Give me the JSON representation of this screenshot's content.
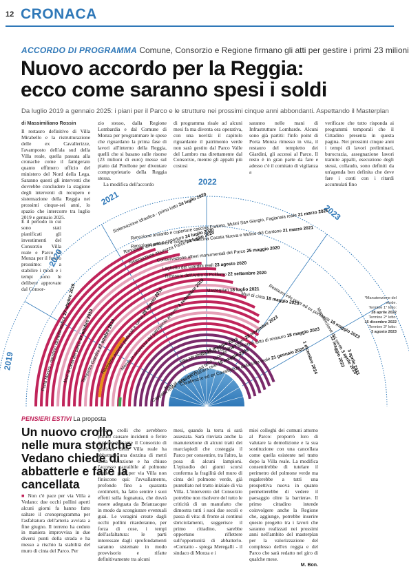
{
  "header": {
    "page_number": "12",
    "section": "CRONACA"
  },
  "article": {
    "kicker_label": "ACCORDO DI PROGRAMMA",
    "kicker_text": "Comune, Consorzio e Regione firmano gli atti per gestire i primi 23 milioni",
    "headline_1": "Nuovo accordo per la Reggia:",
    "headline_2": "ecco come saranno spesi i soldi",
    "subhead": "Da luglio 2019 a gennaio 2025: i piani per il Parco e le strutture nei prossimi cinque anni abbondanti. Aspettando il Masterplan",
    "byline": "di Massimiliano Rossin",
    "col1": "Il restauro definitivo di Villa Mirabello e la ristrutturazione delle ex Cavallerizze, l'avamposto dell'ala sud della Villa reale, quella passata alla cronache come il famigerato quanto effimero ufficio del ministero del Nord della Lega. Saranno questi gli interventi che dovrebbe concludere la stagione degli interventi di recupero e sistemazione della Reggia nei prossimi cinque-sei anni, lo spazio che intercorre tra luglio 2019 e gennaio 2025.",
    "col1b": "È il periodo in cui sono stati pianificati gli investimenti del Consorzio Villa reale e Parco di Monza per il futuro prossimo: a stabilire i modi e i tempi sono le delibere approvate dal Consor-",
    "col2": "zio stesso, dalla Regione Lombardia e dal Comune di Monza per programmare le spese che riguardano la prima fase di lavori all'interno della Reggia, quelli che si basano sulle risorse (23 milioni di euro) messe sul piatto dal Pirellone per diventare comproprietario della Reggia stessa.",
    "col2b": "La modifica dell'accordo",
    "col3": "di programma risale ad alcuni mesi fa ma diventa ora operativa, con una novità: il capitolo riguardante il patrimonio verde non sarà gestito dal Parco Valle del Lambro ma direttamente dal Consorzio, mentre gli appalti più costosi",
    "col4": "saranno nelle mani di Infrastrutture Lombarde. Alcuni sono già partiti: l'info point di Porta Monza rimesso in vita, il restauro del tempietto dei Giardini, gli accessi al Parco. Il resto è in gran parte da fare e adesso c'è il comitato di vigilanza a",
    "col5": "verificare che tutto risponda ai programmi temporali che il Cittadino presenta in questa pagina. Nei prossimi cinque anni i tempi di lavori preliminari, burocrazia, assegnazione lavori tramite appalti, esecuzione degli stessi, collaudo, sono definiti da un'agenda ben definita che deve fare i conti con i ritardi accumulati fino"
  },
  "timeline": {
    "years": [
      "2019",
      "2020",
      "2021",
      "2022",
      "2023"
    ],
    "arcs": [
      {
        "label": "Porta Monza - ripristino idoneità statica",
        "date": "27 ottobre 2019",
        "color": "#c0245a"
      },
      {
        "label": "Muri di cinta del parco",
        "date": "27 ottobre 2019",
        "color": "#c0245a"
      },
      {
        "label": "Tempietto Giardini",
        "date": "27 ottobre 2019",
        "color": "#c0245a"
      },
      {
        "label": "Revisione accessi pedonali e carrai",
        "date": "29 agosto 2019",
        "color": "#c0245a"
      },
      {
        "label": "Messa in sicurezza del patrimonio arboreo",
        "date": "2 settembre 2019",
        "color": "#c0245a"
      },
      {
        "label": "Cappella reale - rifacimento del tetto, facciate e restauro",
        "date": "28 novembre 2023",
        "color": "#7a2a6a"
      },
      {
        "label": "Muri di cinta dei Giardini reali",
        "date": "18 maggio 2023",
        "color": "#7a2a6a"
      },
      {
        "label": "Cavallerizze ed ex Cavallerizze della Villa reale",
        "date": "21 gennaio 2025",
        "color": "#7a2a6a"
      },
      {
        "label": "Villa Mirabello",
        "date": "18 maggio 2023",
        "color": "#7a2a6a"
      },
      {
        "label": "Cascina Fontana - secondo lotto di restauro",
        "date": "18 maggio 2023",
        "color": "#7a2a6a"
      },
      {
        "label": "Restauro info point ed ex portineria",
        "date": "18 maggio 2023",
        "color": "#7a2a6a"
      },
      {
        "label": "Muri di cinta",
        "date": "18 maggio 2023",
        "color": "#7a2a6a"
      }
    ],
    "upper_labels": [
      {
        "text": "Sistemazione idraulica - primo lotto",
        "date": "24 luglio 2020"
      },
      {
        "text": "Rimozione amianto e coperture cascina Frutteto, Mulini San Giorgio, Fagianaia reale",
        "date": "21 marzo 2021"
      },
      {
        "text": "Rimozione amianto e coperture cascina Casata Nuova e Mulino del Cantone",
        "date": "21 marzo 2021"
      },
      {
        "text": "Rimozione amianto e coperture",
        "date": "24 luglio 2020"
      },
      {
        "text": "Sistemazione sicurezza Parco",
        "date": "24 luglio 2020"
      },
      {
        "text": "Conservazione alberi monumentali del Parco",
        "date": "25 maggio 2020"
      },
      {
        "text": "Laghetto dei Giardini reali",
        "date": "23 agosto 2020"
      },
      {
        "text": "Restauro dell'Antro di Polifemo",
        "date": "22 settembre 2020"
      },
      {
        "text": "Masterplan",
        "date": "18 luglio 2021"
      },
      {
        "text": "Manutenzione del verde",
        "date": "3 aprile 2023"
      }
    ],
    "right_dates": [
      "1 dicembre 2024",
      "12 maggio 2023",
      "3 aprile 2023"
    ],
    "footnote_title": "*Manutenzione del verde.",
    "footnote_lines": [
      "Termine 1° lotto:",
      "28 aprile 2022",
      "Termine 2° lotto:",
      "15 dicembre 2022",
      "Termine 3° lotto:",
      "3 agosto 2023"
    ]
  },
  "second": {
    "section_label": "PENSIERI ESTIVI",
    "section_text": "La proposta",
    "headline": "Un nuovo crollo nelle mura storiche Vedano chiede di abbatterle e fare la cancellata",
    "col1": "Non c'è pace per via Villa a Vedano: due occhi pollini aperti alcuni giorni fa hanno fatto saltare il cronoprogramma per l'asfaltatura dell'arteria avviata a fine giugno. Il terreno ha ceduto in maniera improvvisa in due diversi punti della strada e ha messo a rischio la stabilità del muro di cinta del Parco. Per",
    "col2": "evitare crolli che avrebbero potuto causare incidenti o ferire qualche passante il Consorzio di gestione della Villa reale ha abbattuto una dozzina di metri della recinzione e ha chiuso l'accesso carraibile al polmone verde. I guai per via Villa non finiscono qui: l'avvallamento, profondo fino a quaranta centimetri, ha fatto sentire i suoi effetti sulla fognatura, che dovrà essere adeguata da Brianzacque in modo da scongiurare eventuali guai. Le voragini create dagli occhi pollini ritarderanno, per forza di cose, i tempi dell'asfaltatura: le parti interessate dagli sprofondamenti saranno sistemate in modo provvisorio e rifatte definitivamente tra alcuni",
    "col3": "mesi, quando la terra si sarà assestata. Sarà rinviata anche la manutenzione di alcuni tratti dei marciapiedi che costeggia il Parco per consentire, tra l'altro, la posa di alcuni lampioni. L'episodio dei giorni scorsi conferma la fragilità del muro di cinta del polmone verde, già puntellato nel tratto iniziale di via Villa. L'intervento del Consorzio potrebbe non risolvere del tutto le criticità di un manufatto che dimostra tutti i suoi due secoli e passa di vita: di fronte ai continui sbriciolamenti, suggerisce il primo cittadino, sarebbe opportuno riflettere sull'opportunità di abbatterlo. «Contatto - spiega Meregalli - il sindaco di Monza e i",
    "col4": "miei colleghi dei comuni attorno al Parco: proporrò loro di valutare la demolizione e la sua sostituzione con una cancellata come quella esistente nel tratto dopo la Villa reale. La modifica consentirebbe di tutelare il perimetro del polmone verde ma regalerebbe a tutti una prospettiva nuova in quanto permetterebbe di vedere il paesaggio oltre la barriera». Il primo cittadino intende coinvolgere anche la Regione che, aggiunge, potrebbe inserire questo progetto tra i lavori che saranno realizzati nei prossimi anni nell'ambito del masterplan per la valorizzazione del complesso dell'ex reggia e del Parco che sarà redatto nel giro di qualche mese.",
    "signature": "M. Bon."
  }
}
